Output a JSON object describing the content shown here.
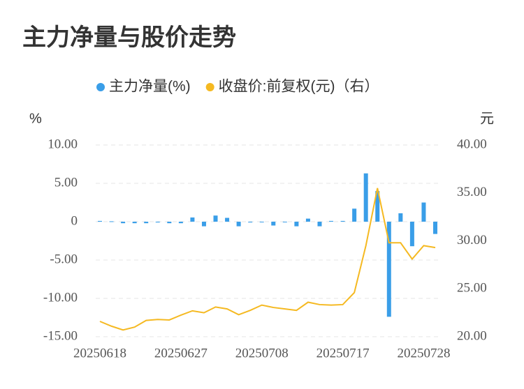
{
  "chart_data": {
    "type": "combo",
    "title": "主力净量与股价走势",
    "y_label": "%",
    "y2_label": "元",
    "categories": [
      "20250618",
      null,
      null,
      null,
      null,
      null,
      null,
      "20250627",
      null,
      null,
      null,
      null,
      null,
      null,
      "20250708",
      null,
      null,
      null,
      null,
      null,
      null,
      "20250717",
      null,
      null,
      null,
      null,
      null,
      null,
      "20250728",
      null
    ],
    "series": [
      {
        "name": "主力净量(%)",
        "type": "bar",
        "color": "#3a9ee8",
        "values": [
          0.1,
          0.05,
          -0.2,
          -0.2,
          -0.2,
          -0.1,
          -0.2,
          -0.2,
          0.55,
          -0.6,
          0.8,
          0.5,
          -0.6,
          -0.1,
          -0.05,
          -0.5,
          -0.05,
          -0.6,
          0.4,
          -0.6,
          0.1,
          0.1,
          1.7,
          6.3,
          4.0,
          -12.4,
          1.1,
          -3.2,
          2.5,
          -1.6
        ]
      },
      {
        "name": "收盘价:前复权(元)（右）",
        "type": "line",
        "axis": "y2",
        "color": "#f5b921",
        "values": [
          21.6,
          21.1,
          20.7,
          21.0,
          21.7,
          21.8,
          21.75,
          22.25,
          22.7,
          22.5,
          23.1,
          22.9,
          22.3,
          22.75,
          23.3,
          23.05,
          22.9,
          22.75,
          23.6,
          23.35,
          23.3,
          23.35,
          24.6,
          29.5,
          35.5,
          29.8,
          29.8,
          28.1,
          29.5,
          29.3
        ]
      }
    ],
    "ylim": [
      -15,
      10
    ],
    "yticks": [
      {
        "value": 10,
        "label": "10.00"
      },
      {
        "value": 5,
        "label": "5.00"
      },
      0,
      {
        "value": -5,
        "label": "-5.00"
      },
      {
        "value": -10,
        "label": "-10.00"
      },
      {
        "value": -15,
        "label": "-15.00"
      }
    ],
    "y2lim": [
      20,
      40
    ],
    "y2ticks": [
      {
        "value": 40,
        "label": "40.00"
      },
      {
        "value": 35,
        "label": "35.00"
      },
      {
        "value": 30,
        "label": "30.00"
      },
      {
        "value": 25,
        "label": "25.00"
      },
      {
        "value": 20,
        "label": "20.00"
      }
    ],
    "grid": true
  }
}
